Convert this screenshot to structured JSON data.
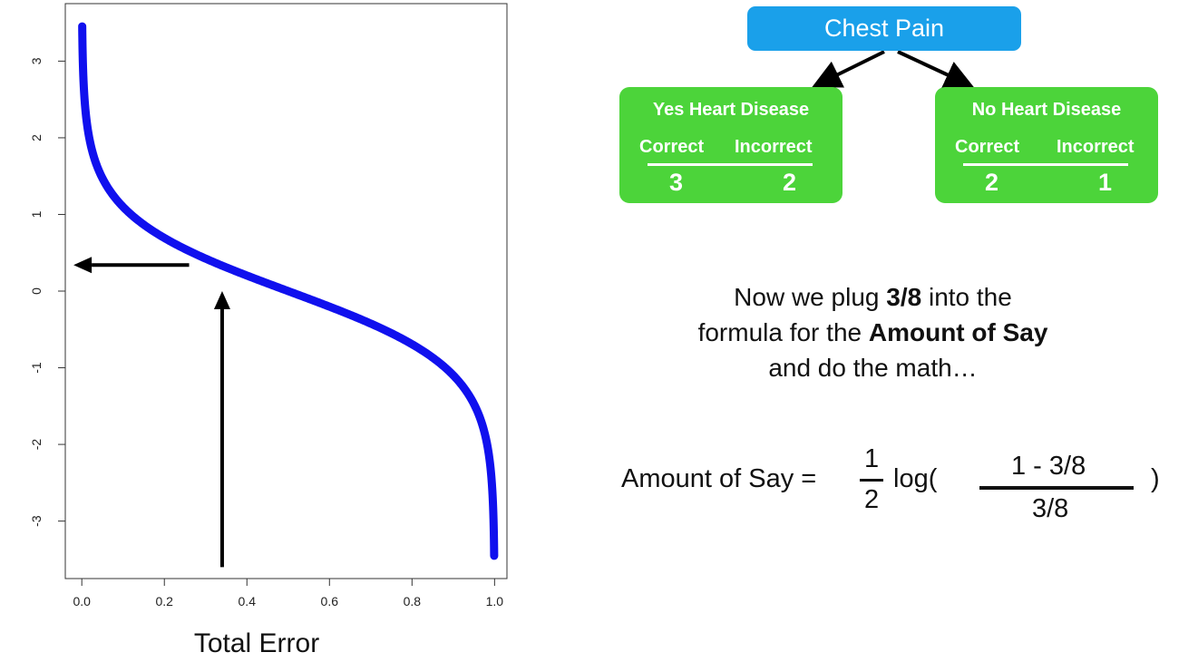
{
  "chart_data": {
    "type": "line",
    "function": "0.5 * ln((1 - x) / x)",
    "x_range": [
      0.001,
      0.999
    ],
    "xlim": [
      -0.04,
      1.03
    ],
    "ylim": [
      -3.75,
      3.75
    ],
    "xlabel": "Total Error",
    "ylabel": "",
    "xticks": [
      0.0,
      0.2,
      0.4,
      0.6,
      0.8,
      1.0
    ],
    "xtick_labels": [
      "0.0",
      "0.2",
      "0.4",
      "0.6",
      "0.8",
      "1.0"
    ],
    "yticks": [
      -3,
      -2,
      -1,
      0,
      1,
      2,
      3
    ],
    "ytick_labels": [
      "-3",
      "-2",
      "-1",
      "0",
      "1",
      "2",
      "3"
    ],
    "series": [
      {
        "color": "#1010ee"
      }
    ],
    "grid": false,
    "annotations": [
      {
        "type": "arrow",
        "from": [
          0.34,
          -3.6
        ],
        "to": [
          0.34,
          0.0
        ],
        "color": "#000000"
      },
      {
        "type": "arrow",
        "from": [
          0.26,
          0.34
        ],
        "to": [
          -0.02,
          0.34
        ],
        "color": "#000000"
      }
    ]
  },
  "tree": {
    "root": {
      "label": "Chest Pain",
      "color": "#1aa0ea"
    },
    "leaves": [
      {
        "title": "Yes Heart Disease",
        "correct_label": "Correct",
        "incorrect_label": "Incorrect",
        "correct": "3",
        "incorrect": "2",
        "color": "#4cd43a"
      },
      {
        "title": "No Heart Disease",
        "correct_label": "Correct",
        "incorrect_label": "Incorrect",
        "correct": "2",
        "incorrect": "1",
        "color": "#4cd43a"
      }
    ]
  },
  "caption": {
    "line1_pre": "Now we plug ",
    "line1_bold": "3/8",
    "line1_post": " into the",
    "line2_pre": "formula for the ",
    "line2_bold": "Amount of Say",
    "line3": "and do the math…"
  },
  "formula": {
    "lhs": "Amount of Say =",
    "half_num": "1",
    "half_den": "2",
    "log_open": "log(",
    "numerator": "1 - 3/8",
    "denominator": "3/8",
    "close": ")"
  }
}
